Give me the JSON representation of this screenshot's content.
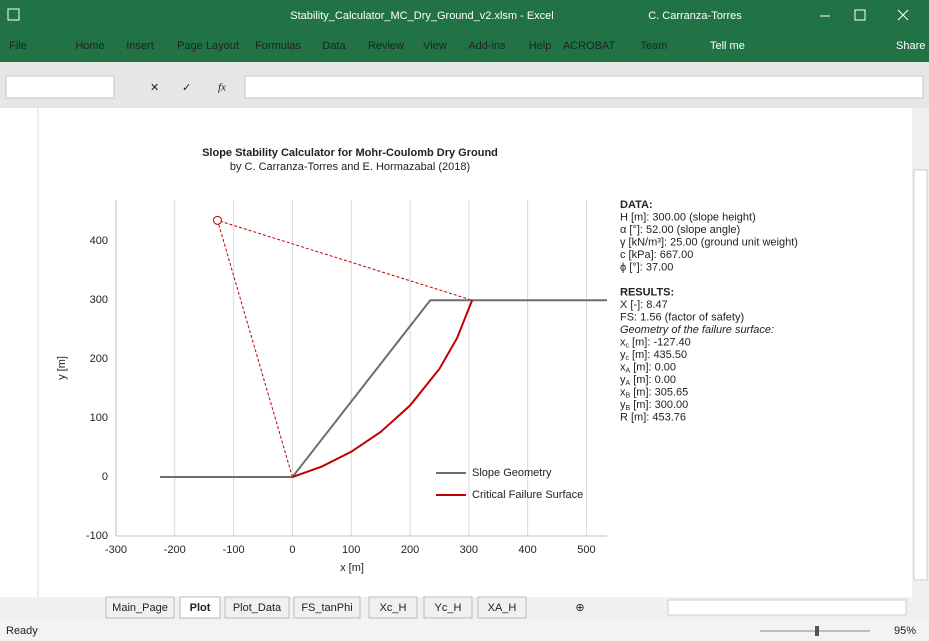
{
  "window": {
    "title": "Stability_Calculator_MC_Dry_Ground_v2.xlsm  -  Excel",
    "user": "C. Carranza-Torres"
  },
  "ribbon": {
    "tabs": [
      "File",
      "Home",
      "Insert",
      "Page Layout",
      "Formulas",
      "Data",
      "Review",
      "View",
      "Add-ins",
      "Help",
      "ACROBAT",
      "Team"
    ],
    "tell_me": "Tell me",
    "share": "Share"
  },
  "formula_bar": {
    "function_label": "fx"
  },
  "chart_data": {
    "type": "line",
    "title": "Slope Stability Calculator for Mohr-Coulomb Dry Ground",
    "subtitle": "by C. Carranza-Torres and E. Hormazabal (2018)",
    "x_label": "x [m]",
    "y_label": "y [m]",
    "xlim": [
      -300,
      535
    ],
    "ylim": [
      -100,
      470
    ],
    "xticks": [
      -300,
      -200,
      -100,
      0,
      100,
      200,
      300,
      400,
      500
    ],
    "yticks": [
      -100,
      0,
      100,
      200,
      300,
      400
    ],
    "grid": "x",
    "legend": "lower right",
    "series": [
      {
        "name": "Slope Geometry",
        "color": "#6d6d6d",
        "x": [
          -225,
          0,
          234.4,
          535
        ],
        "y": [
          0,
          0,
          300,
          300
        ]
      },
      {
        "name": "Critical Failure Surface",
        "color": "#c00000",
        "x": [
          0,
          50,
          100,
          150,
          200,
          250,
          280,
          305.65
        ],
        "y": [
          0,
          17.86,
          42.83,
          76.41,
          121.32,
          183.57,
          235.69,
          300
        ]
      }
    ],
    "guides": {
      "color": "#c00000",
      "x": [
        0,
        -127.4,
        305.65
      ],
      "y": [
        0,
        435.5,
        300
      ]
    },
    "center": {
      "x": -127.4,
      "y": 435.5
    }
  },
  "info_panel": {
    "data_heading": "DATA:",
    "data_lines": [
      "H [m]: 300.00 (slope height)",
      "α [°]: 52.00 (slope angle)",
      "γ [kN/m³]: 25.00 (ground unit weight)",
      "c [kPa]: 667.00",
      "ϕ [°]: 37.00"
    ],
    "results_heading": "RESULTS:",
    "results_lines": [
      "X [-]: 8.47",
      "FS: 1.56 (factor of safety)"
    ],
    "geometry_heading": "Geometry of the failure surface:",
    "geometry_lines": [
      {
        "symbol": "x",
        "subscript": "c",
        "rest": " [m]: -127.40"
      },
      {
        "symbol": "y",
        "subscript": "c",
        "rest": " [m]: 435.50"
      },
      {
        "symbol": "x",
        "subscript": "A",
        "rest": " [m]: 0.00"
      },
      {
        "symbol": "y",
        "subscript": "A",
        "rest": " [m]: 0.00"
      },
      {
        "symbol": "x",
        "subscript": "B",
        "rest": " [m]: 305.65"
      },
      {
        "symbol": "y",
        "subscript": "B",
        "rest": " [m]: 300.00"
      }
    ],
    "radius_line": "R [m]: 453.76"
  },
  "sheet_tabs": {
    "tabs": [
      "Main_Page",
      "Plot",
      "Plot_Data",
      "FS_tanPhi",
      "Xc_H",
      "Yc_H",
      "XA_H"
    ],
    "active": 1
  },
  "status_bar": {
    "status": "Ready",
    "zoom": "95%"
  }
}
